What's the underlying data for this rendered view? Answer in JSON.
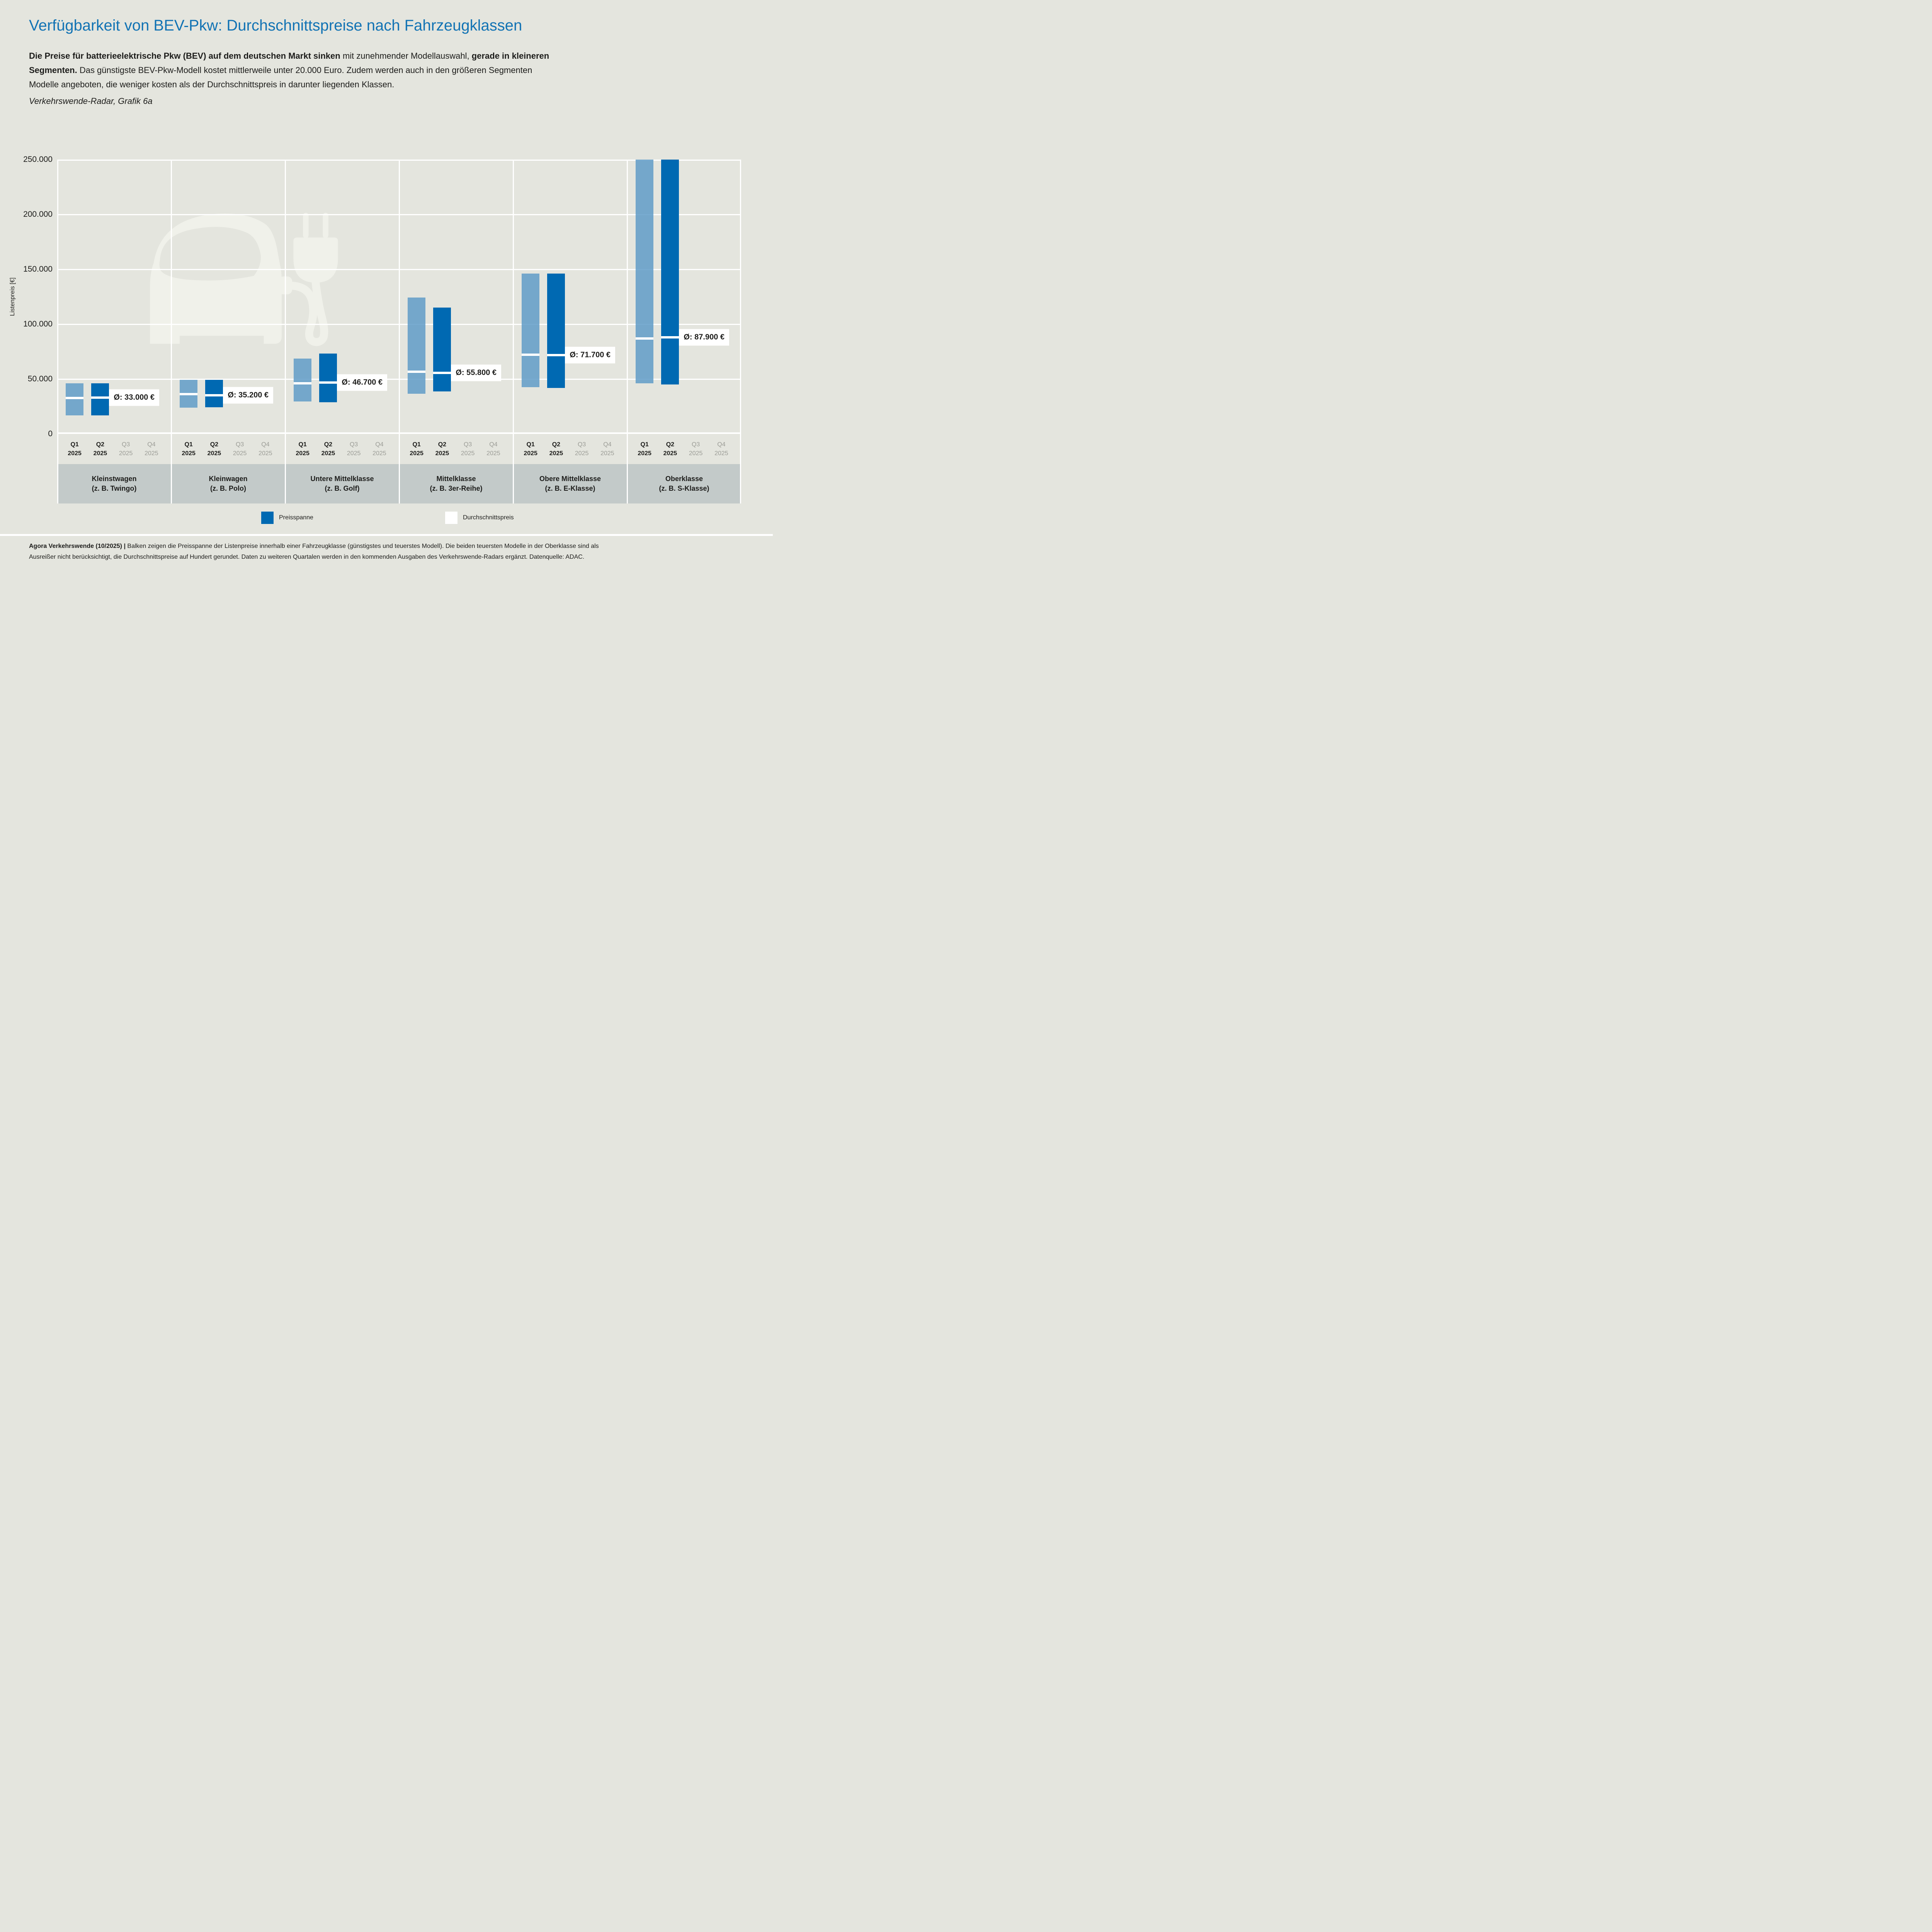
{
  "page": {
    "background": "#e4e5de",
    "accent_blue": "#1273b4",
    "band_background": "#c3cac9",
    "watermark_color": "#f0f1ea"
  },
  "header": {
    "title": "Verfügbarkeit von BEV-Pkw: Durchschnittspreise nach Fahrzeugklassen",
    "intro_lines": [
      [
        {
          "text": "Die Preise für batterieelektrische Pkw (BEV) auf dem deutschen Markt sinken",
          "bold": true
        },
        {
          "text": " mit zunehmender Modellauswahl, ",
          "bold": false
        },
        {
          "text": "gerade in kleineren",
          "bold": true
        }
      ],
      [
        {
          "text": "Segmenten.",
          "bold": true
        },
        {
          "text": " Das günstigste BEV-Pkw-Modell kostet mittlerweile unter 20.000 Euro. Zudem werden auch in den größeren Segmenten",
          "bold": false
        }
      ],
      [
        {
          "text": "Modelle angeboten, die weniger kosten als der Durchschnittspreis in darunter liegenden Klassen.",
          "bold": false
        }
      ]
    ],
    "source_note": "Verkehrswende-Radar, Grafik 6a"
  },
  "chart_data": {
    "type": "bar",
    "subtype": "floating-price-range-bars",
    "title": "Verfügbarkeit von BEV-Pkw: Durchschnittspreise nach Fahrzeugklassen",
    "xlabel": "",
    "ylabel": "Listenpreis [€]",
    "ylim": [
      0,
      250000
    ],
    "grid": true,
    "yticks": [
      {
        "value": 250000,
        "label": "250.000"
      },
      {
        "value": 200000,
        "label": "200.000"
      },
      {
        "value": 150000,
        "label": "150.000"
      },
      {
        "value": 100000,
        "label": "100.000"
      },
      {
        "value": 50000,
        "label": "50.000"
      },
      {
        "value": 0,
        "label": "0"
      }
    ],
    "quarters": [
      {
        "label": "Q1",
        "year": "2025",
        "has_data": true
      },
      {
        "label": "Q2",
        "year": "2025",
        "has_data": true
      },
      {
        "label": "Q3",
        "year": "2025",
        "has_data": false
      },
      {
        "label": "Q4",
        "year": "2025",
        "has_data": false
      }
    ],
    "colors": {
      "q1_bar": "rgba(96,156,200,0.85)",
      "q2_bar": "#0069b2",
      "avg_line": "#ffffff",
      "gridline": "#ffffff"
    },
    "groups": [
      {
        "name": "Kleinstwagen",
        "example": "(z. B. Twingo)",
        "avg_label": "Ø: 33.000 €",
        "bars": [
          {
            "quarter": "Q1 2025",
            "min": 17000,
            "max": 46000,
            "avg": 32600
          },
          {
            "quarter": "Q2 2025",
            "min": 17000,
            "max": 46000,
            "avg": 33000
          }
        ]
      },
      {
        "name": "Kleinwagen",
        "example": "(z. B. Polo)",
        "avg_label": "Ø: 35.200 €",
        "bars": [
          {
            "quarter": "Q1 2025",
            "min": 24000,
            "max": 49400,
            "avg": 36300
          },
          {
            "quarter": "Q2 2025",
            "min": 24200,
            "max": 49400,
            "avg": 35200
          }
        ]
      },
      {
        "name": "Untere Mittelklasse",
        "example": "(z. B. Golf)",
        "avg_label": "Ø: 46.700 €",
        "bars": [
          {
            "quarter": "Q1 2025",
            "min": 29400,
            "max": 68500,
            "avg": 46300
          },
          {
            "quarter": "Q2 2025",
            "min": 29000,
            "max": 73100,
            "avg": 46700
          }
        ]
      },
      {
        "name": "Mittelklasse",
        "example": "(z. B. 3er-Reihe)",
        "avg_label": "Ø: 55.800 €",
        "bars": [
          {
            "quarter": "Q1 2025",
            "min": 36500,
            "max": 124300,
            "avg": 56800
          },
          {
            "quarter": "Q2 2025",
            "min": 38800,
            "max": 115000,
            "avg": 55800
          }
        ]
      },
      {
        "name": "Obere Mittelklasse",
        "example": "(z. B. E-Klasse)",
        "avg_label": "Ø: 71.700 €",
        "bars": [
          {
            "quarter": "Q1 2025",
            "min": 42500,
            "max": 146000,
            "avg": 72200
          },
          {
            "quarter": "Q2 2025",
            "min": 42000,
            "max": 146000,
            "avg": 71700
          }
        ]
      },
      {
        "name": "Oberklasse",
        "example": "(z. B. S-Klasse)",
        "avg_label": "Ø: 87.900 €",
        "bars": [
          {
            "quarter": "Q1 2025",
            "min": 46000,
            "max": 250000,
            "avg": 86800,
            "clipped_top": true
          },
          {
            "quarter": "Q2 2025",
            "min": 45000,
            "max": 250000,
            "avg": 87900,
            "clipped_top": true
          }
        ]
      }
    ],
    "legend": [
      {
        "label": "Preisspanne",
        "color": "#0069b2"
      },
      {
        "label": "Durchschnittspreis",
        "color": "#ffffff"
      }
    ],
    "legend_position": "bottom-center"
  },
  "footer": {
    "bold": "Agora Verkehrswende (10/2025) |",
    "line1_rest": "Balken zeigen die Preisspanne der Listenpreise innerhalb einer Fahrzeugklasse (günstigstes und teuerstes Modell). Die beiden teuersten Modelle in der Oberklasse sind als",
    "line2": "Ausreißer nicht berücksichtigt, die Durchschnittspreise auf Hundert gerundet. Daten zu weiteren Quartalen werden in den kommenden Ausgaben des Verkehrswende-Radars ergänzt. Datenquelle: ADAC."
  }
}
